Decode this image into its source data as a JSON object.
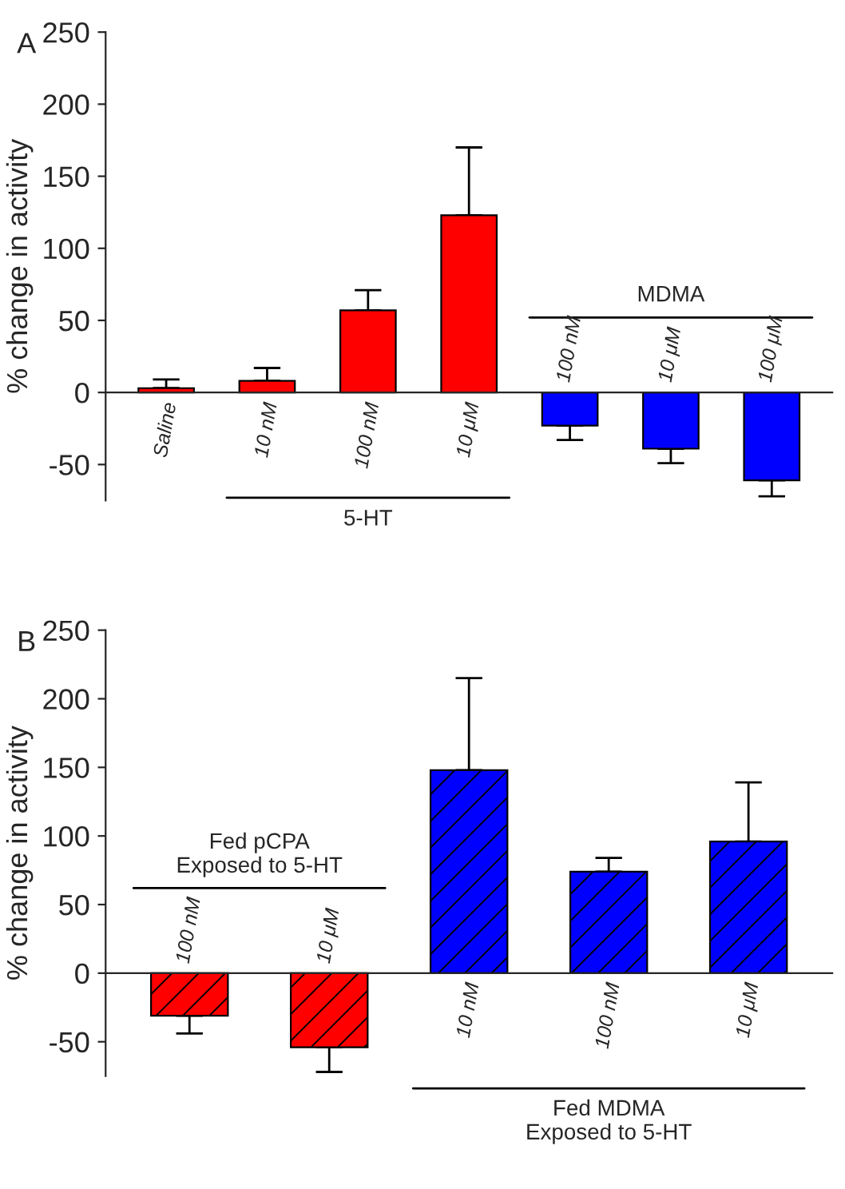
{
  "chart_data": [
    {
      "type": "bar",
      "categories": [
        "Saline",
        "10 nM",
        "100 nM",
        "10 μM",
        "100 nM",
        "10 μM",
        "100 μM"
      ],
      "values": [
        3,
        8,
        57,
        123,
        -23,
        -39,
        -61
      ],
      "colors": [
        "#ff0000",
        "#ff0000",
        "#ff0000",
        "#ff0000",
        "#0000ff",
        "#0000ff",
        "#0000ff"
      ],
      "errors": [
        6,
        9,
        14,
        47,
        10,
        10,
        11
      ],
      "ylabel": "% change in activity",
      "ylim": [
        -75,
        250
      ],
      "yticks": [
        -50,
        0,
        50,
        100,
        150,
        200,
        250
      ],
      "grid": false,
      "legend": false,
      "annotations": [
        "A",
        "5-HT",
        "MDMA"
      ]
    },
    {
      "type": "bar",
      "categories": [
        "100 nM",
        "10 μM",
        "10 nM",
        "100 nM",
        "10 μM"
      ],
      "values": [
        -31,
        -54,
        148,
        74,
        96
      ],
      "colors": [
        "#ff0000",
        "#ff0000",
        "#0000ff",
        "#0000ff",
        "#0000ff"
      ],
      "errors": [
        13,
        18,
        67,
        10,
        43
      ],
      "ylabel": "% change in activity",
      "ylim": [
        -75,
        250
      ],
      "yticks": [
        -50,
        0,
        50,
        100,
        150,
        200,
        250
      ],
      "grid": false,
      "legend": false,
      "annotations": [
        "B",
        "Fed pCPA\nExposed to 5-HT",
        "Fed MDMA\nExposed to 5-HT"
      ]
    }
  ]
}
